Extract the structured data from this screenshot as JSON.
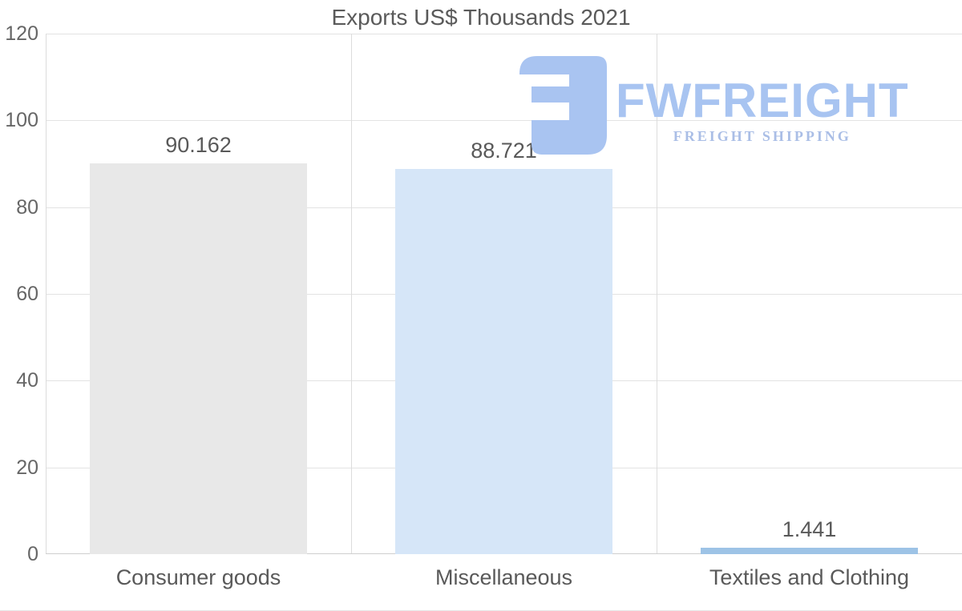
{
  "title": "Exports US$ Thousands 2021",
  "logo": {
    "name": "FWFREIGHT",
    "tagline": "FREIGHT SHIPPING",
    "wordmark_color": "#a8c4f1",
    "tagline_color": "#aabee6",
    "icon_color": "#a9c4f1"
  },
  "chart_data": {
    "type": "bar",
    "title": "Exports US$ Thousands 2021",
    "categories": [
      "Consumer goods",
      "Miscellaneous",
      "Textiles and Clothing"
    ],
    "values": [
      90.162,
      88.721,
      1.441
    ],
    "value_labels": [
      "90.162",
      "88.721",
      "1.441"
    ],
    "bar_colors": [
      "#e8e8e8",
      "#d6e6f8",
      "#9dc3e6"
    ],
    "xlabel": "",
    "ylabel": "",
    "ylim": [
      0,
      120
    ],
    "yticks": [
      0,
      20,
      40,
      60,
      80,
      100,
      120
    ],
    "grid": true,
    "legend_position": "none"
  },
  "style_colors": {
    "grid_line": "#e3e3e3",
    "axis_line": "#cfcfcf",
    "separator_line": "#dcdcdc",
    "title_text": "#5a5a5a",
    "tick_text": "#666666",
    "label_text": "#595959"
  }
}
